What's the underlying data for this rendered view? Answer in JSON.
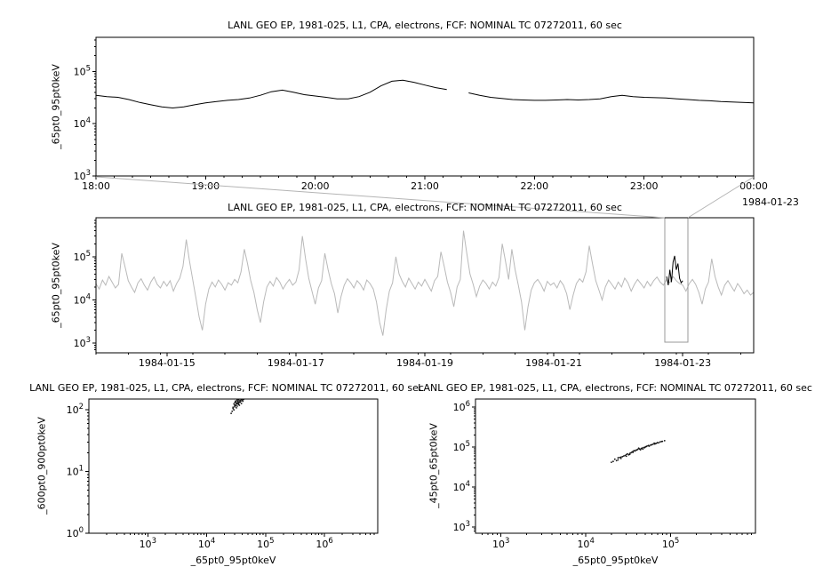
{
  "colors": {
    "frame": "#000000",
    "line_black": "#000000",
    "line_gray": "#b9b9b9",
    "connector": "#b4b4b4",
    "selection": "#999999",
    "scatter": "#161616"
  },
  "chart_data": [
    {
      "id": "top-timeseries",
      "type": "line",
      "title": "LANL GEO EP, 1981-025, L1, CPA, electrons, FCF: NOMINAL TC 07272011, 60 sec",
      "ylabel": "_65pt0_95pt0keV",
      "x_sub_label": "1984-01-23",
      "xlog": false,
      "xlim": [
        18,
        24
      ],
      "ylim": [
        1000.0,
        450000.0
      ],
      "x_minor": 0.1666667,
      "x_ticks": [
        {
          "v": 18,
          "label": "18:00"
        },
        {
          "v": 19,
          "label": "19:00"
        },
        {
          "v": 20,
          "label": "20:00"
        },
        {
          "v": 21,
          "label": "21:00"
        },
        {
          "v": 22,
          "label": "22:00"
        },
        {
          "v": 23,
          "label": "23:00"
        },
        {
          "v": 24,
          "label": "00:00"
        }
      ],
      "series": [
        {
          "name": "_65pt0_95pt0keV",
          "color": "#000000",
          "x0": 18.0,
          "dx": 0.1,
          "values": [
            35000.0,
            33000.0,
            32000.0,
            29000.0,
            25500.0,
            23000.0,
            21000.0,
            20000.0,
            21000.0,
            23000.0,
            25000.0,
            26500.0,
            28000.0,
            29000.0,
            31000.0,
            35000.0,
            41000.0,
            44000.0,
            40000.0,
            36000.0,
            34000.0,
            32000.0,
            30000.0,
            30000.0,
            33000.0,
            40000.0,
            53000.0,
            65000.0,
            68000.0,
            62000.0,
            55000.0,
            49000.0,
            45000.0,
            null,
            39000.0,
            35000.0,
            32000.0,
            30500.0,
            29000.0,
            28500.0,
            28000.0,
            28000.0,
            28500.0,
            29000.0,
            28500.0,
            29000.0,
            30000.0,
            33000.0,
            35000.0,
            33000.0,
            32000.0,
            31500.0,
            31000.0,
            30000.0,
            29000.0,
            28000.0,
            27500.0,
            26500.0,
            26000.0,
            25500.0,
            25000.0
          ]
        }
      ]
    },
    {
      "id": "context-timeseries",
      "type": "line",
      "title": "LANL GEO EP, 1981-025, L1, CPA, electrons, FCF: NOMINAL TC 07272011, 60 sec",
      "ylabel": "_65pt0_95pt0keV",
      "xlog": false,
      "xlim": [
        13.9,
        24.1
      ],
      "ylim": [
        600.0,
        800000.0
      ],
      "x_minor": 0.5,
      "x_ticks": [
        {
          "v": 15,
          "label": "1984-01-15"
        },
        {
          "v": 17,
          "label": "1984-01-17"
        },
        {
          "v": 19,
          "label": "1984-01-19"
        },
        {
          "v": 21,
          "label": "1984-01-21"
        },
        {
          "v": 23,
          "label": "1984-01-23"
        }
      ],
      "selection": {
        "x0": 22.72,
        "x1": 23.08
      },
      "series": [
        {
          "name": "context-gray",
          "color": "#b9b9b9",
          "x0": 13.9,
          "dx": 0.05,
          "values": [
            24000.0,
            18000.0,
            29000.0,
            22000.0,
            35000.0,
            26000.0,
            19000.0,
            23000.0,
            120000.0,
            60000.0,
            28000.0,
            20000.0,
            15000.0,
            25000.0,
            31000.0,
            22000.0,
            17000.0,
            26000.0,
            34000.0,
            23000.0,
            19000.0,
            27000.0,
            21000.0,
            28000.0,
            16000.0,
            24000.0,
            32000.0,
            60000.0,
            250000.0,
            80000.0,
            30000.0,
            11000.0,
            4000.0,
            2000.0,
            8000.0,
            18000.0,
            26000.0,
            20000.0,
            29000.0,
            23000.0,
            17000.0,
            25000.0,
            22000.0,
            30000.0,
            25000.0,
            45000.0,
            150000.0,
            70000.0,
            28000.0,
            15000.0,
            6000.0,
            3000.0,
            9000.0,
            20000.0,
            27000.0,
            21000.0,
            33000.0,
            26000.0,
            18000.0,
            24000.0,
            30000.0,
            22000.0,
            26000.0,
            50000.0,
            300000.0,
            90000.0,
            32000.0,
            16000.0,
            8000.0,
            19000.0,
            28000.0,
            120000.0,
            50000.0,
            24000.0,
            14000.0,
            5000.0,
            12000.0,
            22000.0,
            31000.0,
            25000.0,
            19000.0,
            28000.0,
            23000.0,
            17000.0,
            29000.0,
            24000.0,
            18000.0,
            9000.0,
            3000.0,
            1500.0,
            6000.0,
            16000.0,
            25000.0,
            100000.0,
            40000.0,
            27000.0,
            20000.0,
            32000.0,
            24000.0,
            18000.0,
            26000.0,
            21000.0,
            30000.0,
            22000.0,
            16000.0,
            28000.0,
            35000.0,
            130000.0,
            60000.0,
            26000.0,
            15000.0,
            7000.0,
            20000.0,
            30000.0,
            400000.0,
            120000.0,
            40000.0,
            23000.0,
            12000.0,
            21000.0,
            29000.0,
            24000.0,
            18000.0,
            26000.0,
            21000.0,
            33000.0,
            200000.0,
            80000.0,
            30000.0,
            150000.0,
            50000.0,
            22000.0,
            9000.0,
            2000.0,
            7000.0,
            17000.0,
            25000.0,
            30000.0,
            23000.0,
            16000.0,
            27000.0,
            22000.0,
            25000.0,
            19000.0,
            28000.0,
            22000.0,
            14000.0,
            6000.0,
            13000.0,
            24000.0,
            31000.0,
            26000.0,
            45000.0,
            180000.0,
            70000.0,
            28000.0,
            17000.0,
            10000.0,
            20000.0,
            29000.0,
            23000.0,
            18000.0,
            26000.0,
            20000.0,
            32000.0,
            25000.0,
            16000.0,
            23000.0,
            30000.0,
            24000.0,
            19000.0,
            27000.0,
            21000.0,
            28000.0,
            34000.0,
            26000.0,
            22000.0,
            30000.0,
            25000.0,
            35000.0,
            28000.0,
            24000.0,
            22000.0,
            16000.0,
            24000.0,
            30000.0,
            23000.0,
            15000.0,
            8000.0,
            18000.0,
            26000.0,
            90000.0,
            35000.0,
            20000.0,
            13000.0,
            22000.0,
            28000.0,
            21000.0,
            16000.0,
            24000.0,
            19000.0,
            14000.0,
            17000.0,
            13000.0,
            15000.0
          ]
        },
        {
          "name": "highlight-black",
          "color": "#000000",
          "x0": 22.75,
          "dx": 0.025,
          "values": [
            35000.0,
            22000.0,
            50000.0,
            26000.0,
            75000.0,
            105000.0,
            50000.0,
            70000.0,
            32000.0,
            25000.0,
            28000.0
          ]
        }
      ]
    },
    {
      "id": "scatter-left",
      "type": "scatter",
      "title": "LANL GEO EP, 1981-025, L1, CPA, electrons, FCF: NOMINAL TC 07272011, 60 sec",
      "ylabel": "_600pt0_900pt0keV",
      "xlabel": "_65pt0_95pt0keV",
      "xlog": true,
      "xlim": [
        100.0,
        8000000.0
      ],
      "ylim": [
        1,
        150.0
      ],
      "points": [
        [
          32000.0,
          130
        ],
        [
          35000.0,
          145
        ],
        [
          30000.0,
          120
        ],
        [
          28000.0,
          110
        ],
        [
          38000.0,
          150
        ],
        [
          42000.0,
          160
        ],
        [
          34000.0,
          125
        ],
        [
          31000.0,
          140
        ],
        [
          36000.0,
          135
        ],
        [
          40000.0,
          155
        ],
        [
          29000.0,
          100
        ],
        [
          33000.0,
          115
        ],
        [
          45000.0,
          170
        ],
        [
          37000.0,
          142
        ],
        [
          32000.0,
          128
        ],
        [
          30000.0,
          132
        ],
        [
          39000.0,
          148
        ],
        [
          41000.0,
          138
        ],
        [
          35000.0,
          122
        ],
        [
          27000.0,
          95
        ],
        [
          48000.0,
          175
        ],
        [
          36000.0,
          158
        ],
        [
          33000.0,
          146
        ],
        [
          31000.0,
          118
        ],
        [
          43000.0,
          152
        ],
        [
          38000.0,
          165
        ],
        [
          29000.0,
          125
        ],
        [
          34000.0,
          137
        ],
        [
          40000.0,
          143
        ],
        [
          32000.0,
          108
        ],
        [
          52000.0,
          180
        ],
        [
          37000.0,
          133
        ],
        [
          35000.0,
          150
        ],
        [
          30000.0,
          112
        ],
        [
          44000.0,
          162
        ],
        [
          39000.0,
          127
        ],
        [
          33000.0,
          141
        ],
        [
          28000.0,
          105
        ],
        [
          46000.0,
          168
        ],
        [
          36000.0,
          119
        ],
        [
          31000.0,
          136
        ],
        [
          42000.0,
          147
        ],
        [
          34000.0,
          131
        ],
        [
          50000.0,
          172
        ],
        [
          38000.0,
          140
        ],
        [
          26000.0,
          88
        ],
        [
          32000.0,
          124
        ],
        [
          41000.0,
          157
        ],
        [
          35000.0,
          129
        ],
        [
          30000.0,
          116
        ],
        [
          34000.0,
          190
        ],
        [
          36000.0,
          210
        ],
        [
          33000.0,
          175
        ],
        [
          37000.0,
          185
        ]
      ]
    },
    {
      "id": "scatter-right",
      "type": "scatter",
      "title": "LANL GEO EP, 1981-025, L1, CPA, electrons, FCF: NOMINAL TC 07272011, 60 sec",
      "ylabel": "_45pt0_65pt0keV",
      "xlabel": "_65pt0_95pt0keV",
      "xlog": true,
      "xlim": [
        500.0,
        1000000.0
      ],
      "ylim": [
        700.0,
        1600000.0
      ],
      "points": [
        [
          22000.0,
          50000.0
        ],
        [
          25000.0,
          55000.0
        ],
        [
          28000.0,
          60000.0
        ],
        [
          30000.0,
          65000.0
        ],
        [
          33000.0,
          70000.0
        ],
        [
          24000.0,
          48000.0
        ],
        [
          27000.0,
          58000.0
        ],
        [
          35000.0,
          75000.0
        ],
        [
          38000.0,
          80000.0
        ],
        [
          40000.0,
          85000.0
        ],
        [
          26000.0,
          52000.0
        ],
        [
          31000.0,
          68000.0
        ],
        [
          43000.0,
          90000.0
        ],
        [
          46000.0,
          95000.0
        ],
        [
          50000.0,
          100000.0
        ],
        [
          29000.0,
          62000.0
        ],
        [
          34000.0,
          72000.0
        ],
        [
          55000.0,
          110000.0
        ],
        [
          60000.0,
          115000.0
        ],
        [
          65000.0,
          120000.0
        ],
        [
          36000.0,
          78000.0
        ],
        [
          41000.0,
          88000.0
        ],
        [
          70000.0,
          130000.0
        ],
        [
          75000.0,
          135000.0
        ],
        [
          80000.0,
          140000.0
        ],
        [
          45000.0,
          92000.0
        ],
        [
          52000.0,
          105000.0
        ],
        [
          85000.0,
          145000.0
        ],
        [
          32000.0,
          64000.0
        ],
        [
          48000.0,
          98000.0
        ],
        [
          58000.0,
          112000.0
        ],
        [
          68000.0,
          125000.0
        ],
        [
          23000.0,
          46000.0
        ],
        [
          37000.0,
          82000.0
        ],
        [
          44000.0,
          86000.0
        ],
        [
          54000.0,
          108000.0
        ],
        [
          62000.0,
          118000.0
        ],
        [
          72000.0,
          128000.0
        ],
        [
          21000.0,
          44000.0
        ],
        [
          39000.0,
          84000.0
        ],
        [
          49000.0,
          96000.0
        ],
        [
          56000.0,
          106000.0
        ],
        [
          20000.0,
          42000.0
        ],
        [
          30000.0,
          59000.0
        ],
        [
          42000.0,
          94000.0
        ],
        [
          66000.0,
          122000.0
        ],
        [
          78000.0,
          138000.0
        ],
        [
          26000.0,
          56000.0
        ],
        [
          33000.0,
          66000.0
        ],
        [
          51000.0,
          102000.0
        ],
        [
          24000.0,
          54000.0
        ],
        [
          36000.0,
          74000.0
        ],
        [
          47000.0,
          89000.0
        ],
        [
          59000.0,
          114000.0
        ],
        [
          64000.0,
          126000.0
        ]
      ]
    }
  ]
}
